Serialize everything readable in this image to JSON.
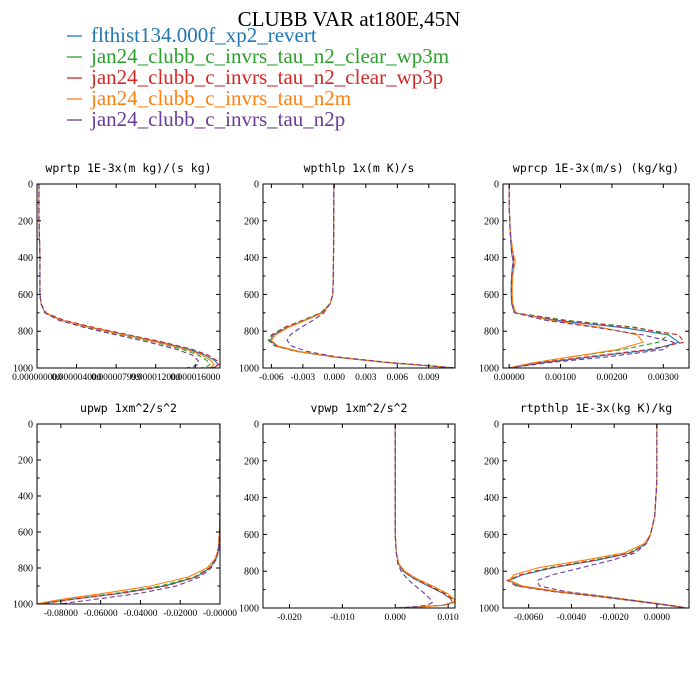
{
  "figure": {
    "title": "CLUBB VAR at180E,45N"
  },
  "legend": [
    {
      "label": "flthist134.000f_xp2_revert",
      "color": "#1f77b4",
      "dash": "solid"
    },
    {
      "label": "jan24_clubb_c_invrs_tau_n2_clear_wp3m",
      "color": "#2ca02c",
      "dash": "dash"
    },
    {
      "label": "jan24_clubb_c_invrs_tau_n2_clear_wp3p",
      "color": "#d62728",
      "dash": "dash"
    },
    {
      "label": "jan24_clubb_c_invrs_tau_n2m",
      "color": "#ff7f0e",
      "dash": "solid"
    },
    {
      "label": "jan24_clubb_c_invrs_tau_n2p",
      "color": "#6a3d9a",
      "dash": "dash"
    }
  ],
  "chart_data": [
    {
      "type": "line",
      "title": "wprtp  1E-3x(m kg)/(s kg)",
      "xlim": [
        0.0,
        1.85e-05
      ],
      "ylim": [
        0,
        1000
      ],
      "y_inverted": true,
      "yticks": [
        "0",
        "200",
        "400",
        "600",
        "800",
        "1000"
      ],
      "xticks": [
        {
          "v": 0.0,
          "label": "0.000000000"
        },
        {
          "v": 4e-06,
          "label": "0.000004000"
        },
        {
          "v": 8e-06,
          "label": "0.000007999"
        },
        {
          "v": 1.2e-05,
          "label": "0.000012000"
        },
        {
          "v": 1.6e-05,
          "label": "0.000016000"
        }
      ],
      "y": [
        0,
        100,
        200,
        300,
        400,
        500,
        600,
        650,
        700,
        740,
        780,
        820,
        860,
        900,
        930,
        960,
        980,
        995,
        1000
      ],
      "series": [
        {
          "values": [
            2e-07,
            2e-07,
            2e-07,
            2.5e-07,
            3e-07,
            3e-07,
            3e-07,
            4e-07,
            8e-07,
            2.5e-06,
            5.5e-06,
            9e-06,
            1.25e-05,
            1.55e-05,
            1.7e-05,
            1.8e-05,
            1.83e-05,
            1.8e-05,
            1.75e-05
          ]
        },
        {
          "values": [
            2e-07,
            2e-07,
            2e-07,
            2.5e-07,
            3e-07,
            3e-07,
            3e-07,
            4e-07,
            8e-07,
            2.2e-06,
            5e-06,
            8.5e-06,
            1.2e-05,
            1.48e-05,
            1.63e-05,
            1.72e-05,
            1.75e-05,
            1.71e-05,
            1.65e-05
          ]
        },
        {
          "values": [
            2e-07,
            2e-07,
            2e-07,
            2.5e-07,
            3e-07,
            3e-07,
            3e-07,
            4e-07,
            9e-07,
            2.7e-06,
            5.8e-06,
            9.3e-06,
            1.28e-05,
            1.58e-05,
            1.73e-05,
            1.82e-05,
            1.84e-05,
            1.8e-05,
            1.74e-05
          ]
        },
        {
          "values": [
            2e-07,
            2e-07,
            2e-07,
            2.5e-07,
            3e-07,
            3e-07,
            3e-07,
            4e-07,
            8e-07,
            2.4e-06,
            5.3e-06,
            8.8e-06,
            1.22e-05,
            1.52e-05,
            1.67e-05,
            1.76e-05,
            1.79e-05,
            1.76e-05,
            1.71e-05
          ]
        },
        {
          "values": [
            2e-07,
            2e-07,
            2e-07,
            2.5e-07,
            3e-07,
            3e-07,
            3e-07,
            4e-07,
            8e-07,
            2.2e-06,
            4.8e-06,
            8e-06,
            1.13e-05,
            1.42e-05,
            1.57e-05,
            1.63e-05,
            1.63e-05,
            1.57e-05,
            1.5e-05
          ]
        }
      ]
    },
    {
      "type": "line",
      "title": "wpthlp  1x(m K)/s",
      "xlim": [
        -0.0068,
        0.0115
      ],
      "ylim": [
        0,
        1000
      ],
      "y_inverted": true,
      "yticks": [
        "0",
        "200",
        "400",
        "600",
        "800",
        "1000"
      ],
      "xticks": [
        {
          "v": -0.006,
          "label": "-0.006"
        },
        {
          "v": -0.003,
          "label": "-0.003"
        },
        {
          "v": 0.0,
          "label": "0.000"
        },
        {
          "v": 0.003,
          "label": "0.003"
        },
        {
          "v": 0.006,
          "label": "0.006"
        },
        {
          "v": 0.009,
          "label": "0.009"
        }
      ],
      "y": [
        0,
        100,
        200,
        300,
        400,
        500,
        600,
        650,
        700,
        740,
        780,
        820,
        850,
        880,
        910,
        940,
        970,
        990,
        1000
      ],
      "series": [
        {
          "values": [
            -5e-05,
            -5e-05,
            -6e-05,
            -7e-05,
            -8e-05,
            -0.0001,
            -0.00015,
            -0.0004,
            -0.0012,
            -0.0028,
            -0.0045,
            -0.0058,
            -0.0061,
            -0.0055,
            -0.0035,
            0.0,
            0.005,
            0.0095,
            0.0115
          ]
        },
        {
          "values": [
            -5e-05,
            -5e-05,
            -6e-05,
            -7e-05,
            -8e-05,
            -0.0001,
            -0.00015,
            -0.0004,
            -0.0013,
            -0.003,
            -0.0048,
            -0.006,
            -0.0063,
            -0.0057,
            -0.0036,
            -0.0001,
            0.0049,
            0.0094,
            0.0115
          ]
        },
        {
          "values": [
            -5e-05,
            -5e-05,
            -6e-05,
            -7e-05,
            -8e-05,
            -0.0001,
            -0.00015,
            -0.0004,
            -0.0012,
            -0.0029,
            -0.0047,
            -0.0059,
            -0.0062,
            -0.0056,
            -0.0035,
            0.0,
            0.005,
            0.0095,
            0.0115
          ]
        },
        {
          "values": [
            -5e-05,
            -5e-05,
            -6e-05,
            -7e-05,
            -8e-05,
            -0.0001,
            -0.00015,
            -0.0004,
            -0.0011,
            -0.0027,
            -0.0044,
            -0.0056,
            -0.006,
            -0.0054,
            -0.0034,
            0.0001,
            0.0051,
            0.0095,
            0.0115
          ]
        },
        {
          "values": [
            -5e-05,
            -5e-05,
            -6e-05,
            -7e-05,
            -8e-05,
            -0.0001,
            -0.00015,
            -0.0004,
            -0.001,
            -0.002,
            -0.0032,
            -0.0042,
            -0.0045,
            -0.0041,
            -0.0026,
            0.0003,
            0.0052,
            0.0096,
            0.0115
          ]
        }
      ]
    },
    {
      "type": "line",
      "title": "wprcp  1E-3x(m/s) (kg/kg)",
      "xlim": [
        -0.00012,
        0.0035
      ],
      "ylim": [
        0,
        1000
      ],
      "y_inverted": true,
      "yticks": [
        "0",
        "200",
        "400",
        "600",
        "800",
        "1000"
      ],
      "xticks": [
        {
          "v": 0.0,
          "label": "0.00000"
        },
        {
          "v": 0.001,
          "label": "0.00100"
        },
        {
          "v": 0.002,
          "label": "0.00200"
        },
        {
          "v": 0.003,
          "label": "0.00300"
        }
      ],
      "y": [
        0,
        100,
        200,
        300,
        380,
        420,
        460,
        500,
        550,
        600,
        650,
        700,
        740,
        780,
        820,
        860,
        900,
        940,
        970,
        990,
        1000
      ],
      "series": [
        {
          "values": [
            0.0,
            0.0,
            1e-05,
            3e-05,
            5e-05,
            8e-05,
            6e-05,
            5e-05,
            4e-05,
            4e-05,
            5e-05,
            0.0001,
            0.0009,
            0.0022,
            0.0031,
            0.0033,
            0.0028,
            0.0016,
            0.0007,
            0.0002,
            0.0
          ]
        },
        {
          "values": [
            0.0,
            0.0,
            1e-05,
            3e-05,
            6e-05,
            0.0001,
            7e-05,
            6e-05,
            5e-05,
            5e-05,
            6e-05,
            0.00012,
            0.0011,
            0.0025,
            0.0031,
            0.0029,
            0.0022,
            0.0012,
            0.0005,
            0.00015,
            0.0
          ]
        },
        {
          "values": [
            0.0,
            0.0,
            1e-05,
            3e-05,
            6e-05,
            0.0001,
            8e-05,
            6e-05,
            5e-05,
            5e-05,
            6e-05,
            0.00012,
            0.001,
            0.0024,
            0.0033,
            0.0034,
            0.0027,
            0.0015,
            0.0006,
            0.00018,
            0.0
          ]
        },
        {
          "values": [
            0.0,
            0.0,
            1e-05,
            4e-05,
            8e-05,
            0.00012,
            9e-05,
            7e-05,
            6e-05,
            6e-05,
            7e-05,
            0.00013,
            0.0008,
            0.0018,
            0.0025,
            0.0026,
            0.0021,
            0.0012,
            0.0005,
            0.00015,
            0.0
          ]
        },
        {
          "values": [
            0.0,
            0.0,
            1e-05,
            3e-05,
            5e-05,
            8e-05,
            6e-05,
            5e-05,
            4e-05,
            4e-05,
            5e-05,
            0.0001,
            0.0007,
            0.0017,
            0.0026,
            0.0032,
            0.003,
            0.0019,
            0.0008,
            0.00025,
            0.0
          ]
        }
      ]
    },
    {
      "type": "line",
      "title": "upwp  1xm^2/s^2",
      "xlim": [
        -0.092,
        0.0
      ],
      "ylim": [
        0,
        1000
      ],
      "y_inverted": true,
      "yticks": [
        "0",
        "200",
        "400",
        "600",
        "800",
        "1000"
      ],
      "xticks": [
        {
          "v": -0.08,
          "label": "-0.08000"
        },
        {
          "v": -0.06,
          "label": "-0.06000"
        },
        {
          "v": -0.04,
          "label": "-0.04000"
        },
        {
          "v": -0.02,
          "label": "-0.02000"
        },
        {
          "v": 0.0,
          "label": "-0.00000"
        }
      ],
      "y": [
        0,
        100,
        200,
        300,
        400,
        500,
        600,
        700,
        750,
        800,
        850,
        900,
        940,
        970,
        990,
        1000
      ],
      "series": [
        {
          "values": [
            0.0,
            0.0,
            0.0,
            0.0,
            0.0,
            0.0,
            -0.0002,
            -0.0008,
            -0.002,
            -0.005,
            -0.012,
            -0.028,
            -0.05,
            -0.072,
            -0.085,
            -0.09
          ]
        },
        {
          "values": [
            0.0,
            0.0,
            0.0,
            0.0,
            0.0,
            0.0,
            -0.0002,
            -0.0008,
            -0.0022,
            -0.0055,
            -0.013,
            -0.03,
            -0.052,
            -0.073,
            -0.086,
            -0.091
          ]
        },
        {
          "values": [
            0.0,
            0.0,
            0.0,
            0.0,
            0.0,
            0.0,
            -0.0002,
            -0.0008,
            -0.002,
            -0.005,
            -0.012,
            -0.027,
            -0.049,
            -0.071,
            -0.084,
            -0.089
          ]
        },
        {
          "values": [
            0.0,
            0.0,
            0.0,
            0.0,
            0.0,
            -0.0001,
            -0.0003,
            -0.001,
            -0.0026,
            -0.0065,
            -0.016,
            -0.035,
            -0.058,
            -0.077,
            -0.088,
            -0.092
          ]
        },
        {
          "values": [
            0.0,
            0.0,
            0.0,
            0.0,
            0.0,
            0.0,
            -0.0002,
            -0.0007,
            -0.0018,
            -0.0045,
            -0.01,
            -0.022,
            -0.04,
            -0.06,
            -0.074,
            -0.08
          ]
        }
      ]
    },
    {
      "type": "line",
      "title": "vpwp  1xm^2/s^2",
      "xlim": [
        -0.025,
        0.0113
      ],
      "ylim": [
        0,
        1000
      ],
      "y_inverted": true,
      "yticks": [
        "0",
        "200",
        "400",
        "600",
        "800",
        "1000"
      ],
      "xticks": [
        {
          "v": -0.02,
          "label": "-0.020"
        },
        {
          "v": -0.01,
          "label": "-0.010"
        },
        {
          "v": 0.0,
          "label": "0.000"
        },
        {
          "v": 0.01,
          "label": "0.010"
        }
      ],
      "y": [
        0,
        100,
        200,
        300,
        400,
        500,
        600,
        700,
        760,
        800,
        840,
        880,
        920,
        950,
        970,
        985,
        995,
        1000
      ],
      "series": [
        {
          "values": [
            0.0,
            0.0,
            0.0,
            0.0,
            0.0,
            0.0,
            0.0,
            0.0002,
            0.0006,
            0.0015,
            0.0035,
            0.0062,
            0.009,
            0.0105,
            0.0108,
            0.009,
            0.004,
            0.0
          ]
        },
        {
          "values": [
            0.0,
            0.0,
            0.0,
            0.0,
            0.0,
            0.0,
            0.0,
            0.0002,
            0.0007,
            0.0017,
            0.0038,
            0.0066,
            0.0094,
            0.0108,
            0.011,
            0.0092,
            0.0042,
            0.0
          ]
        },
        {
          "values": [
            0.0,
            0.0,
            0.0,
            0.0,
            0.0,
            0.0,
            0.0,
            0.0002,
            0.0006,
            0.0016,
            0.0036,
            0.0064,
            0.0092,
            0.0106,
            0.0109,
            0.0091,
            0.0041,
            0.0
          ]
        },
        {
          "values": [
            0.0,
            0.0,
            0.0,
            0.0,
            0.0,
            0.0,
            0.0,
            0.0002,
            0.0007,
            0.0018,
            0.004,
            0.007,
            0.0098,
            0.0111,
            0.0112,
            0.0093,
            0.0043,
            0.0
          ]
        },
        {
          "values": [
            0.0,
            0.0,
            0.0,
            0.0,
            0.0,
            0.0,
            0.0,
            0.0002,
            0.0005,
            0.0011,
            0.0022,
            0.0038,
            0.0055,
            0.0066,
            0.007,
            0.006,
            0.003,
            0.0
          ]
        }
      ]
    },
    {
      "type": "line",
      "title": "rtpthlp  1E-3x(kg K)/kg",
      "xlim": [
        -0.0072,
        0.0015
      ],
      "ylim": [
        0,
        1000
      ],
      "y_inverted": true,
      "yticks": [
        "0",
        "200",
        "400",
        "600",
        "800",
        "1000"
      ],
      "xticks": [
        {
          "v": -0.006,
          "label": "-0.0060"
        },
        {
          "v": -0.004,
          "label": "-0.0040"
        },
        {
          "v": -0.002,
          "label": "-0.0020"
        },
        {
          "v": 0.0,
          "label": "0.0000"
        }
      ],
      "y": [
        0,
        100,
        200,
        300,
        400,
        500,
        600,
        650,
        700,
        740,
        780,
        820,
        850,
        880,
        910,
        940,
        970,
        990,
        1000
      ],
      "series": [
        {
          "values": [
            0.0,
            0.0,
            0.0,
            0.0,
            -5e-05,
            -0.0001,
            -0.0003,
            -0.0005,
            -0.0012,
            -0.0028,
            -0.0048,
            -0.0063,
            -0.0069,
            -0.0065,
            -0.0048,
            -0.0025,
            -0.0005,
            0.0008,
            0.0013
          ]
        },
        {
          "values": [
            0.0,
            0.0,
            0.0,
            0.0,
            -5e-05,
            -0.0001,
            -0.0003,
            -0.0005,
            -0.0013,
            -0.003,
            -0.005,
            -0.0064,
            -0.0069,
            -0.0064,
            -0.0047,
            -0.0024,
            -0.0004,
            0.0009,
            0.0013
          ]
        },
        {
          "values": [
            0.0,
            0.0,
            0.0,
            0.0,
            -5e-05,
            -0.0001,
            -0.0003,
            -0.0005,
            -0.0012,
            -0.0029,
            -0.0049,
            -0.0064,
            -0.007,
            -0.0066,
            -0.0049,
            -0.0026,
            -0.0005,
            0.0008,
            0.0013
          ]
        },
        {
          "values": [
            0.0,
            0.0,
            0.0,
            0.0,
            -5e-05,
            -0.0001,
            -0.0003,
            -0.0006,
            -0.0015,
            -0.0034,
            -0.0055,
            -0.0067,
            -0.0069,
            -0.0063,
            -0.0046,
            -0.0023,
            -0.0003,
            0.0009,
            0.0014
          ]
        },
        {
          "values": [
            0.0,
            0.0,
            0.0,
            0.0,
            -5e-05,
            -0.0001,
            -0.0003,
            -0.0005,
            -0.001,
            -0.0021,
            -0.0035,
            -0.0049,
            -0.0056,
            -0.0055,
            -0.0043,
            -0.0023,
            -0.0004,
            0.0009,
            0.0014
          ]
        }
      ]
    }
  ]
}
